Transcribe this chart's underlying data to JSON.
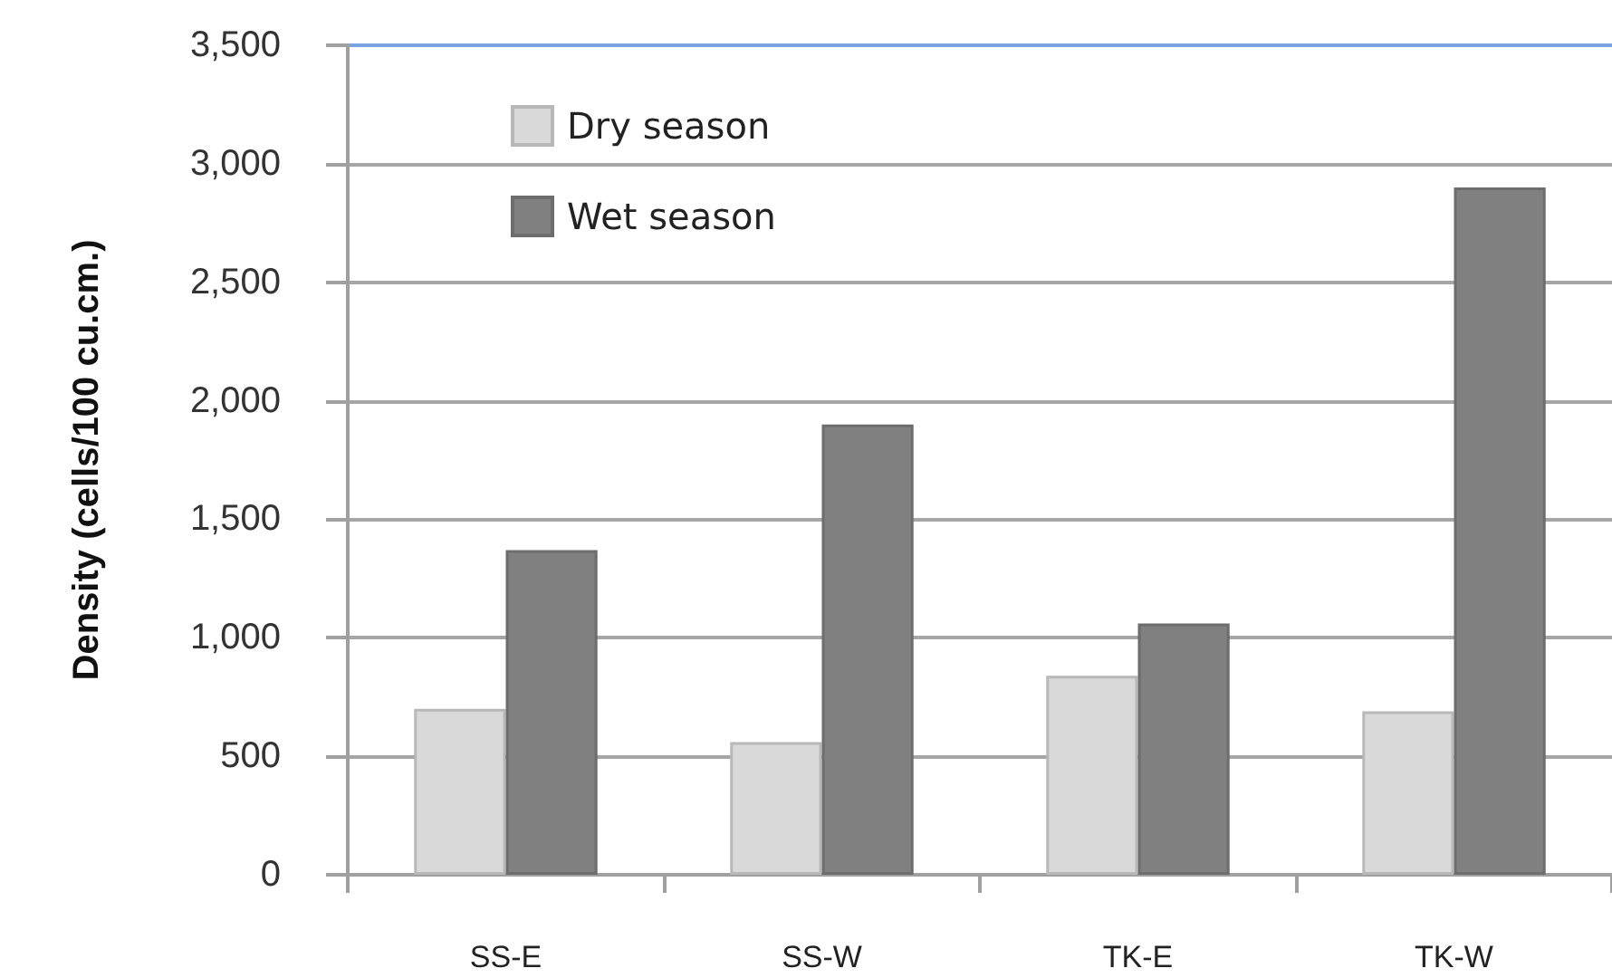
{
  "chart_data": {
    "type": "bar",
    "ylabel": "Density (cells/100 cu.cm.)",
    "categories": [
      "SS-E",
      "SS-W",
      "TK-E",
      "TK-W"
    ],
    "series": [
      {
        "name": "Dry season",
        "color": "#d9d9d9",
        "values": [
          700,
          560,
          840,
          690
        ]
      },
      {
        "name": "Wet season",
        "color": "#808080",
        "values": [
          1370,
          1900,
          1060,
          2900
        ]
      }
    ],
    "ylim": [
      0,
      3500
    ],
    "yticks": [
      0,
      500,
      {
        "value": 1000,
        "label": "1,000"
      },
      {
        "value": 1500,
        "label": "1,500"
      },
      {
        "value": 2000,
        "label": "2,000"
      },
      {
        "value": 2500,
        "label": "2,500"
      },
      {
        "value": 3000,
        "label": "3,000"
      },
      {
        "value": 3500,
        "label": "3,500"
      }
    ],
    "grid": "y",
    "legend": "top left"
  }
}
